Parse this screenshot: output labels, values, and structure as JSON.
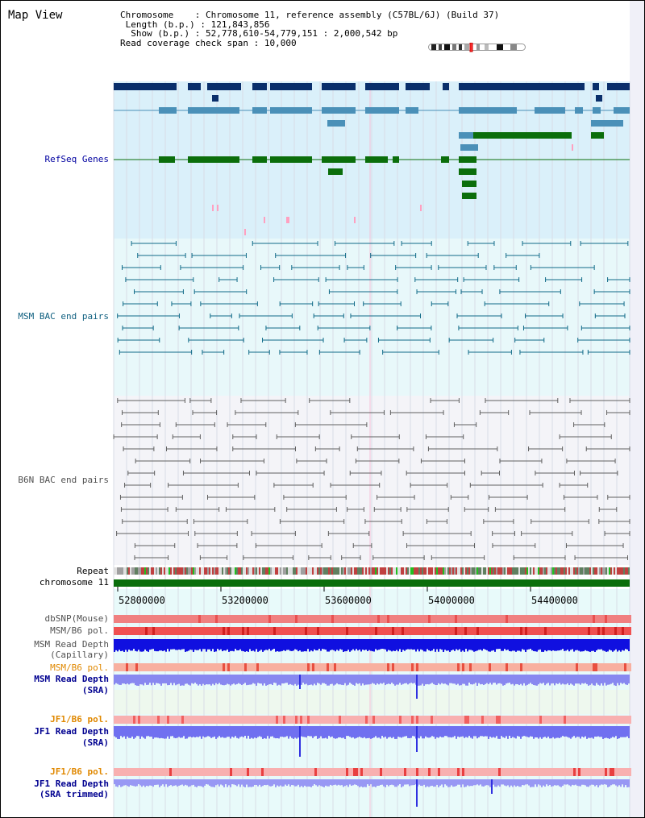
{
  "title": "Map View",
  "info": {
    "chromosome_label": "Chromosome",
    "chromosome_value": "Chromosome 11, reference assembly (C57BL/6J) (Build 37)",
    "length_label": "Length (b.p.)",
    "length_value": "121,843,856",
    "show_label": "Show (b.p.)",
    "show_value": "52,778,610-54,779,151 : 2,000,542 bp",
    "coverage_label": "Read coverage check span",
    "coverage_value": "10,000"
  },
  "tracks": {
    "refseq": "RefSeq Genes",
    "msm_bac": "MSM BAC end pairs",
    "b6n_bac": "B6N BAC end pairs",
    "repeat": "Repeat",
    "chromosome": "chromosome 11",
    "dbsnp": "dbSNP(Mouse)",
    "msm_b6_pol_1": "MSM/B6 pol.",
    "msm_depth_cap_1": "MSM Read Depth",
    "msm_depth_cap_2": "(Capillary)",
    "msm_b6_pol_2": "MSM/B6 pol.",
    "msm_depth_sra_1": "MSM Read Depth",
    "msm_depth_sra_2": "(SRA)",
    "jf1_b6_pol_1": "JF1/B6 pol.",
    "jf1_depth_sra_1": "JF1 Read Depth",
    "jf1_depth_sra_2": "(SRA)",
    "jf1_b6_pol_2": "JF1/B6 pol.",
    "jf1_depth_trim_1": "JF1 Read Depth",
    "jf1_depth_trim_2": "(SRA trimmed)"
  },
  "axis": {
    "ticks": [
      "52800000",
      "53200000",
      "53600000",
      "54000000",
      "54400000"
    ]
  },
  "colors": {
    "navy": "#0a2f6b",
    "steel": "#4a90b8",
    "green": "#0b6e0b",
    "refseq_bg": "#daf0fa",
    "msm_bg": "#e8f8fa",
    "b6n_bg": "#f4f4f8",
    "label_blue": "#0000a0",
    "label_teal": "#106080",
    "label_gray": "#505050",
    "label_orange": "#e08800",
    "label_navy": "#000090"
  }
}
